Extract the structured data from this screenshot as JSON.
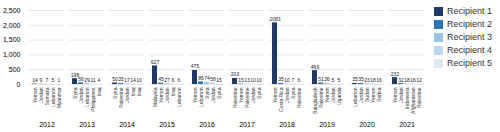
{
  "chart_data": {
    "type": "bar",
    "categories": [
      "2012",
      "2013",
      "2014",
      "2015",
      "2016",
      "2017",
      "2018",
      "2019",
      "2020",
      "2021"
    ],
    "series": [
      {
        "name": "Recipient 1",
        "color": "#1f3864",
        "values": [
          14,
          198,
          50,
          627,
          475,
          203,
          2083,
          469,
          35,
          232
        ],
        "recipients": [
          "Yemen",
          "Syria",
          "Syria",
          "Malaysia",
          "Yemen",
          "Palestine",
          "Yemen",
          "Bangladesh",
          "Lebanon",
          "Yemen"
        ]
      },
      {
        "name": "Recipient 2",
        "color": "#2e75b6",
        "values": [
          9,
          56,
          35,
          45,
          86,
          15,
          35,
          51,
          35,
          32
        ],
        "recipients": [
          "Jordan",
          "Jordan",
          "Palestine",
          "Yemen",
          "Lebanon",
          "Yemen",
          "Costa Rica",
          "Palestine",
          "Jordan",
          "Jordan"
        ]
      },
      {
        "name": "Recipient 3",
        "color": "#9dc3e6",
        "values": [
          7,
          29,
          17,
          27,
          74,
          13,
          10,
          36,
          23,
          18
        ],
        "recipients": [
          "Somalia",
          "Lebanon",
          "Jordan",
          "Jordan",
          "Syria",
          "Palestine",
          "Jordan",
          "Yemen",
          "Sudan",
          "Indonesia"
        ]
      },
      {
        "name": "Recipient 4",
        "color": "#bdd7ee",
        "values": [
          5,
          11,
          14,
          6,
          58,
          10,
          7,
          5,
          18,
          16
        ],
        "recipients": [
          "Lebanon",
          "Philippines",
          "Iraq",
          "Iraq",
          "Jordan",
          "Jordan",
          "Syria",
          "Jordan",
          "Yemen",
          "Afghanistan"
        ]
      },
      {
        "name": "Recipient 5",
        "color": "#deeaf1",
        "values": [
          1,
          4,
          10,
          6,
          15,
          10,
          6,
          5,
          16,
          12
        ],
        "recipients": [
          "Myanmar",
          "Iraq",
          "Iraq",
          "Lebanon",
          "Syria",
          "Syria",
          "Palestine",
          "Uganda",
          "Serbia",
          "Palestine"
        ]
      }
    ],
    "ylim": [
      0,
      2500
    ],
    "yticks": [
      0,
      500,
      {
        "value": 1000,
        "label": "1,000"
      },
      {
        "value": 1500,
        "label": "1,500"
      },
      {
        "value": 2000,
        "label": "2,000"
      },
      {
        "value": 2500,
        "label": "2,500"
      }
    ],
    "grid": true,
    "data_labels": true,
    "legend": "upper right"
  }
}
